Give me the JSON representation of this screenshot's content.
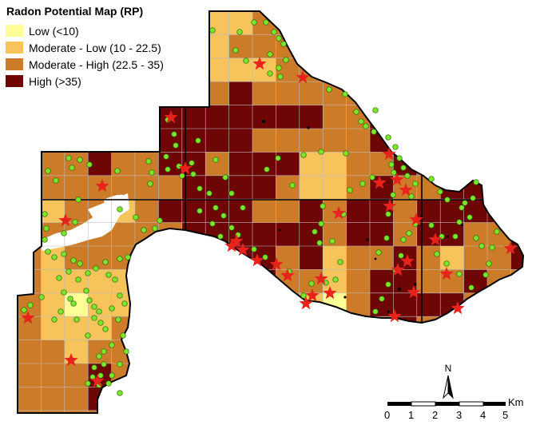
{
  "legend": {
    "title": "Radon Potential Map (RP)",
    "items": [
      {
        "label": "Low (<10)",
        "color": "#fdfd98"
      },
      {
        "label": "Moderate - Low (10 - 22.5)",
        "color": "#f6c45a"
      },
      {
        "label": "Moderate - High (22.5 - 35)",
        "color": "#cc7b29"
      },
      {
        "label": "High (>35)",
        "color": "#6f0606"
      }
    ]
  },
  "north_arrow": {
    "label": "N"
  },
  "scale_bar": {
    "ticks": [
      "0",
      "1",
      "2",
      "3",
      "4",
      "5"
    ],
    "unit": "Km"
  },
  "symbols": {
    "sample_color": "#7ce62b",
    "high_reading_color": "#e8231c"
  }
}
